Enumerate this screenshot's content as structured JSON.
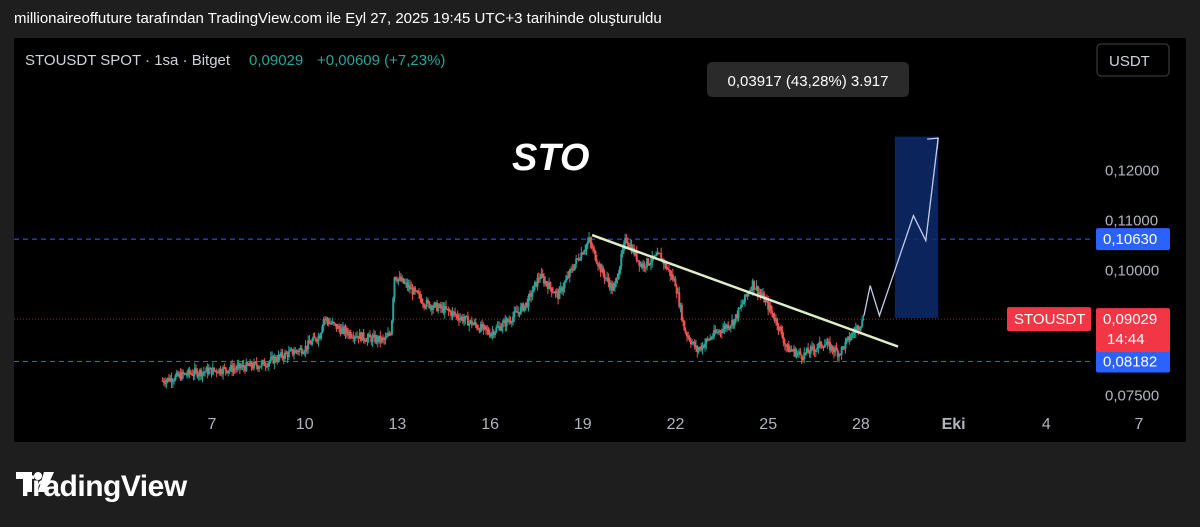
{
  "header": {
    "caption": "millionaireoffuture tarafından TradingView.com ile Eyl 27, 2025 19:45 UTC+3 tarihinde oluşturuldu"
  },
  "symbol": {
    "name": "STOUSDT SPOT · 1sa · Bitget",
    "last": "0,09029",
    "change": "+0,00609 (+7,23%)",
    "currency_button": "USDT"
  },
  "annotations": {
    "big_label": "STO",
    "measure_tooltip": "0,03917 (43,28%) 3.917"
  },
  "price_scale": {
    "ticks": [
      "0,12000",
      "0,11000",
      "0,10000",
      "0,07500"
    ],
    "resistance_label": "0,10630",
    "support_label": "0,08182",
    "current_price_label": "0,09029",
    "countdown": "14:44",
    "symbol_tag": "STOUSDT"
  },
  "time_axis": {
    "ticks": [
      "7",
      "10",
      "13",
      "16",
      "19",
      "22",
      "25",
      "28",
      "Eki",
      "4",
      "7"
    ]
  },
  "footer": {
    "brand": "TradingView"
  },
  "colors": {
    "up": "#26a69a",
    "down": "#ef5350",
    "level_line": "#3d5afe",
    "price_tag": "#f23645",
    "trendline": "#dcedc8",
    "projection_box": "#0d2a6b"
  },
  "chart_data": {
    "type": "candlestick",
    "title": "",
    "ylim": [
      0.075,
      0.128
    ],
    "y_ticks": [
      0.12,
      0.11,
      0.1,
      0.075
    ],
    "x_tick_labels": [
      "7",
      "10",
      "13",
      "16",
      "19",
      "22",
      "25",
      "28",
      "Eki",
      "4",
      "7"
    ],
    "price_path": [
      [
        5.4,
        0.078
      ],
      [
        6.3,
        0.0795
      ],
      [
        7.0,
        0.08
      ],
      [
        7.8,
        0.0805
      ],
      [
        8.6,
        0.0812
      ],
      [
        9.3,
        0.083
      ],
      [
        10.0,
        0.0845
      ],
      [
        10.5,
        0.0872
      ],
      [
        10.6,
        0.0905
      ],
      [
        11.2,
        0.088
      ],
      [
        12.0,
        0.0865
      ],
      [
        12.6,
        0.086
      ],
      [
        12.8,
        0.088
      ],
      [
        12.9,
        0.099
      ],
      [
        13.4,
        0.0965
      ],
      [
        13.9,
        0.0935
      ],
      [
        14.6,
        0.092
      ],
      [
        15.4,
        0.0895
      ],
      [
        16.0,
        0.0875
      ],
      [
        16.6,
        0.09
      ],
      [
        17.2,
        0.0935
      ],
      [
        17.6,
        0.099
      ],
      [
        18.2,
        0.095
      ],
      [
        18.8,
        0.102
      ],
      [
        19.2,
        0.106
      ],
      [
        19.6,
        0.1
      ],
      [
        20.0,
        0.096
      ],
      [
        20.4,
        0.1065
      ],
      [
        20.9,
        0.101
      ],
      [
        21.5,
        0.103
      ],
      [
        22.0,
        0.0975
      ],
      [
        22.3,
        0.088
      ],
      [
        22.7,
        0.084
      ],
      [
        23.2,
        0.087
      ],
      [
        23.9,
        0.09
      ],
      [
        24.5,
        0.0975
      ],
      [
        24.9,
        0.094
      ],
      [
        25.3,
        0.0895
      ],
      [
        25.6,
        0.0845
      ],
      [
        26.1,
        0.083
      ],
      [
        26.8,
        0.0855
      ],
      [
        27.3,
        0.0835
      ],
      [
        27.8,
        0.088
      ],
      [
        28.1,
        0.0903
      ]
    ],
    "levels": {
      "resistance": 0.1063,
      "support": 0.08182,
      "current": 0.09029
    },
    "trendline": [
      [
        19.3,
        0.1071
      ],
      [
        29.2,
        0.0848
      ]
    ],
    "projection_box": {
      "x0": 29.1,
      "x1": 30.5,
      "y0": 0.0905,
      "y1": 0.1268
    },
    "projection_path": [
      [
        28.1,
        0.091
      ],
      [
        28.3,
        0.097
      ],
      [
        28.6,
        0.091
      ],
      [
        29.7,
        0.111
      ],
      [
        30.1,
        0.106
      ],
      [
        30.5,
        0.1265
      ]
    ],
    "measure": {
      "change": 0.03917,
      "percent": 43.28,
      "ticks": 3917
    }
  }
}
